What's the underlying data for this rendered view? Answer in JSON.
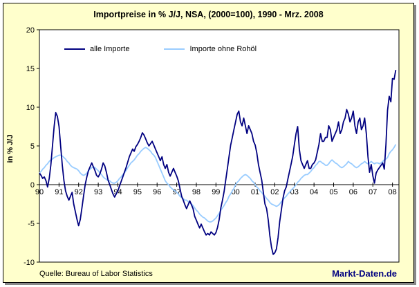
{
  "source": "Quelle: Bureau of Labor Statistics",
  "watermark": "Markt-Daten.de",
  "colors": {
    "frame_background": "#FFFFCC",
    "plot_background": "#FFFFFF",
    "axis": "#000000",
    "all_imports_line": "#000080",
    "ex_oil_line": "#99CCFF",
    "watermark_text": "#000080",
    "shadow": "#888888"
  },
  "chart_data": {
    "type": "line",
    "title": "Importpreise in % J/J, NSA, (2000=100), 1990 - Mrz. 2008",
    "xlabel": "",
    "ylabel": "in % J/J",
    "ylim": [
      -10,
      20
    ],
    "yticks": [
      -10,
      -5,
      0,
      5,
      10,
      15,
      20
    ],
    "xlim": [
      1990,
      2008.33
    ],
    "xtick_labels": [
      "90",
      "91",
      "92",
      "93",
      "94",
      "95",
      "96",
      "97",
      "98",
      "99",
      "00",
      "01",
      "02",
      "03",
      "04",
      "05",
      "06",
      "07",
      "08"
    ],
    "x_start": 1990.0,
    "x_step_months": 1,
    "grid": false,
    "legend_position": "top-left-inside",
    "series": [
      {
        "name": "alle Importe",
        "color": "#000080",
        "values": [
          1.5,
          1.2,
          0.8,
          1.0,
          0.5,
          -0.3,
          0.8,
          2.5,
          5.0,
          7.5,
          9.3,
          8.8,
          7.5,
          5.0,
          2.5,
          0.5,
          -0.8,
          -1.5,
          -2.0,
          -1.5,
          -1.0,
          -2.5,
          -3.5,
          -4.5,
          -5.3,
          -4.5,
          -3.0,
          -1.5,
          0.0,
          1.0,
          1.8,
          2.3,
          2.8,
          2.3,
          1.8,
          1.2,
          1.0,
          1.4,
          2.0,
          2.8,
          2.4,
          1.6,
          0.6,
          0.0,
          -0.6,
          -1.2,
          -1.6,
          -1.2,
          -0.8,
          -0.2,
          0.4,
          1.0,
          1.6,
          2.2,
          2.9,
          3.6,
          4.1,
          4.6,
          4.3,
          4.9,
          5.2,
          5.6,
          6.1,
          6.7,
          6.4,
          5.9,
          5.4,
          5.0,
          5.3,
          5.6,
          5.1,
          4.6,
          4.1,
          3.6,
          3.1,
          3.6,
          2.6,
          2.1,
          2.6,
          1.6,
          1.1,
          1.6,
          2.1,
          1.6,
          1.1,
          0.5,
          -0.5,
          -1.5,
          -2.0,
          -2.6,
          -3.1,
          -2.6,
          -2.1,
          -2.6,
          -3.1,
          -4.1,
          -4.6,
          -5.1,
          -5.6,
          -5.1,
          -5.6,
          -6.1,
          -6.5,
          -6.3,
          -6.5,
          -6.1,
          -6.3,
          -6.5,
          -6.2,
          -5.5,
          -4.5,
          -3.0,
          -2.0,
          -0.9,
          0.6,
          2.1,
          3.6,
          5.1,
          6.1,
          7.1,
          8.1,
          9.1,
          9.5,
          8.1,
          7.6,
          8.6,
          7.6,
          6.6,
          7.6,
          7.1,
          6.6,
          5.6,
          5.1,
          4.1,
          2.6,
          1.6,
          0.6,
          -1.0,
          -2.5,
          -3.1,
          -4.6,
          -6.6,
          -8.1,
          -9.0,
          -8.8,
          -8.3,
          -6.8,
          -4.8,
          -3.3,
          -1.8,
          -0.8,
          -0.3,
          0.7,
          1.7,
          2.7,
          3.7,
          5.2,
          6.6,
          7.5,
          4.6,
          3.1,
          2.6,
          2.1,
          2.6,
          3.1,
          2.1,
          2.1,
          2.6,
          2.8,
          3.2,
          4.2,
          5.2,
          6.6,
          5.6,
          5.6,
          6.1,
          6.1,
          7.6,
          7.1,
          5.6,
          6.1,
          6.6,
          7.1,
          8.1,
          6.6,
          7.1,
          8.1,
          8.6,
          9.7,
          9.1,
          8.1,
          8.6,
          9.5,
          7.6,
          6.6,
          8.1,
          8.6,
          7.1,
          7.6,
          8.6,
          6.6,
          3.6,
          1.6,
          2.6,
          1.1,
          0.2,
          1.5,
          1.9,
          2.2,
          2.5,
          2.8,
          2.0,
          5.2,
          9.6,
          11.4,
          10.7,
          13.7,
          13.6,
          14.8
        ]
      },
      {
        "name": "Importe ohne Rohöl",
        "color": "#99CCFF",
        "values": [
          1.5,
          1.7,
          2.0,
          2.2,
          2.5,
          2.7,
          3.0,
          3.2,
          3.3,
          3.5,
          3.6,
          3.7,
          3.8,
          3.8,
          3.7,
          3.5,
          3.3,
          3.0,
          2.8,
          2.5,
          2.3,
          2.2,
          2.1,
          2.0,
          1.8,
          1.5,
          1.3,
          1.2,
          1.3,
          1.5,
          1.8,
          2.0,
          2.2,
          2.3,
          2.2,
          2.0,
          1.8,
          1.5,
          1.3,
          1.0,
          0.8,
          0.7,
          0.5,
          0.5,
          0.3,
          0.2,
          0.2,
          0.3,
          0.5,
          0.8,
          1.0,
          1.3,
          1.5,
          1.8,
          2.2,
          2.5,
          2.8,
          3.0,
          3.2,
          3.5,
          3.8,
          4.0,
          4.3,
          4.5,
          4.7,
          4.8,
          4.7,
          4.5,
          4.3,
          4.0,
          3.8,
          3.5,
          3.0,
          2.5,
          2.0,
          1.5,
          1.0,
          0.5,
          0.2,
          0.0,
          -0.3,
          -0.5,
          -0.7,
          -0.8,
          -1.0,
          -1.2,
          -1.5,
          -1.7,
          -1.8,
          -2.0,
          -2.0,
          -2.2,
          -2.3,
          -2.5,
          -2.7,
          -3.0,
          -3.3,
          -3.5,
          -3.8,
          -4.0,
          -4.2,
          -4.3,
          -4.5,
          -4.7,
          -4.8,
          -4.8,
          -4.7,
          -4.5,
          -4.3,
          -4.0,
          -3.7,
          -3.3,
          -3.0,
          -2.7,
          -2.3,
          -2.0,
          -1.5,
          -1.2,
          -0.8,
          -0.5,
          0.0,
          0.3,
          0.5,
          0.8,
          1.0,
          1.2,
          1.3,
          1.2,
          1.0,
          0.8,
          0.5,
          0.3,
          0.0,
          -0.3,
          -0.5,
          -0.8,
          -1.0,
          -1.3,
          -1.5,
          -1.8,
          -2.0,
          -2.3,
          -2.5,
          -2.6,
          -2.7,
          -2.8,
          -2.7,
          -2.5,
          -2.2,
          -2.0,
          -1.7,
          -1.5,
          -1.2,
          -1.0,
          -0.7,
          -0.5,
          -0.3,
          0.0,
          0.3,
          0.5,
          0.8,
          1.0,
          1.2,
          1.3,
          1.3,
          1.5,
          1.7,
          2.0,
          2.2,
          2.5,
          2.7,
          3.0,
          3.0,
          2.8,
          2.7,
          2.5,
          2.5,
          2.7,
          3.0,
          3.2,
          3.0,
          2.8,
          2.7,
          2.5,
          2.3,
          2.2,
          2.3,
          2.5,
          2.7,
          3.0,
          2.8,
          2.7,
          2.5,
          2.3,
          2.2,
          2.3,
          2.5,
          2.7,
          2.8,
          3.0,
          2.8,
          2.7,
          2.8,
          3.0,
          2.8,
          2.7,
          2.8,
          2.8,
          2.7,
          2.8,
          3.0,
          3.2,
          3.3,
          3.5,
          4.0,
          4.3,
          4.5,
          4.8,
          5.2
        ]
      }
    ]
  }
}
